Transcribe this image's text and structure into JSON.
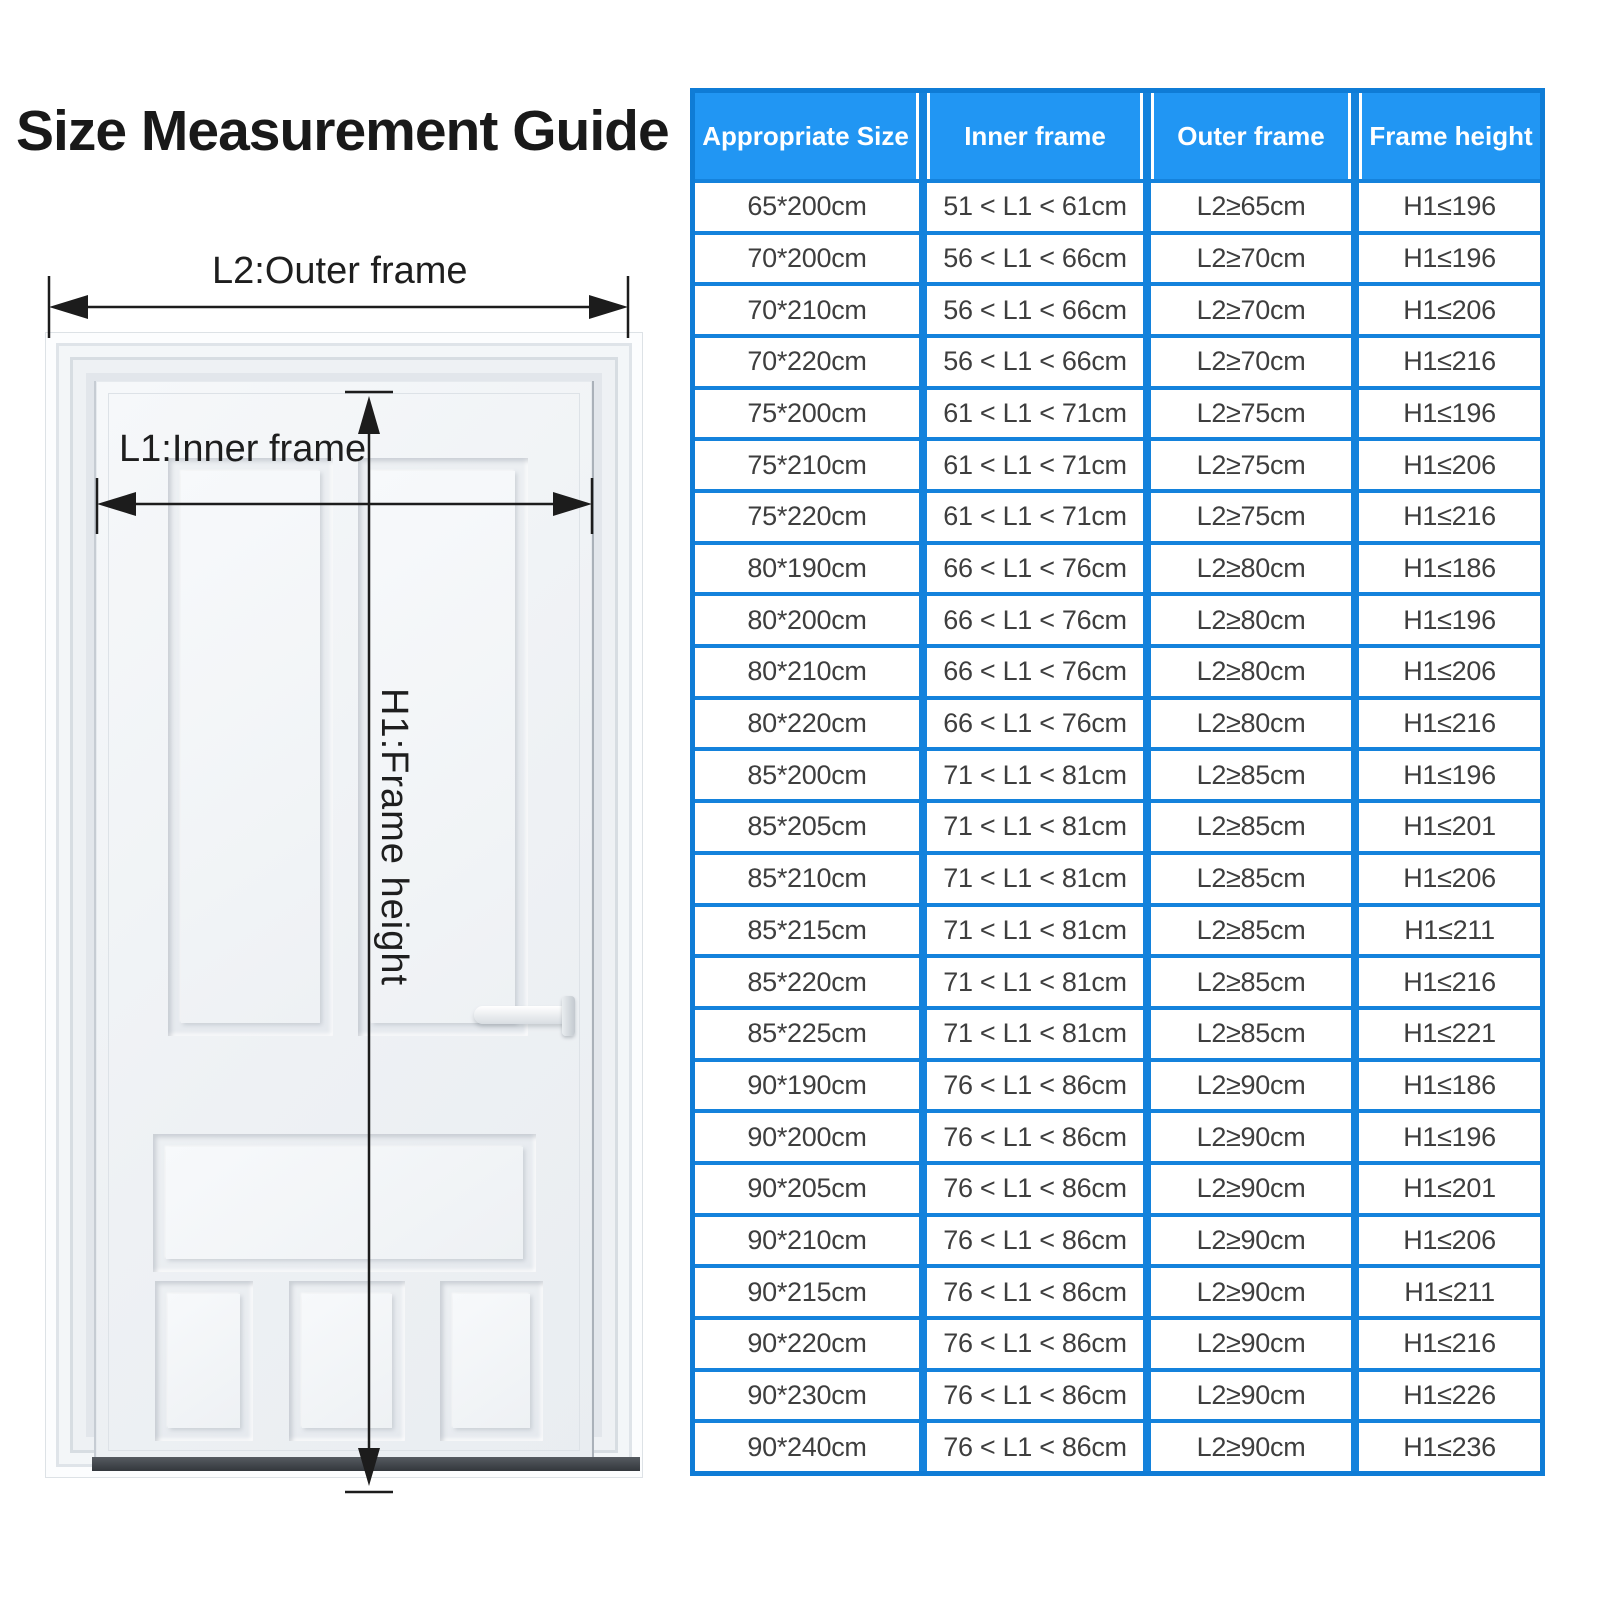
{
  "page": {
    "title": "Size Measurement Guide"
  },
  "diagram": {
    "outer_frame_label": "L2:Outer frame",
    "inner_frame_label": "L1:Inner frame",
    "frame_height_label": "H1:Frame height"
  },
  "table": {
    "headers": [
      "Appropriate Size",
      "Inner frame",
      "Outer frame",
      "Frame height"
    ],
    "rows": [
      [
        "65*200cm",
        "51 < L1 < 61cm",
        "L2≥65cm",
        "H1≤196"
      ],
      [
        "70*200cm",
        "56 < L1 < 66cm",
        "L2≥70cm",
        "H1≤196"
      ],
      [
        "70*210cm",
        "56 < L1 < 66cm",
        "L2≥70cm",
        "H1≤206"
      ],
      [
        "70*220cm",
        "56 < L1 < 66cm",
        "L2≥70cm",
        "H1≤216"
      ],
      [
        "75*200cm",
        "61 < L1 < 71cm",
        "L2≥75cm",
        "H1≤196"
      ],
      [
        "75*210cm",
        "61 < L1 < 71cm",
        "L2≥75cm",
        "H1≤206"
      ],
      [
        "75*220cm",
        "61 < L1 < 71cm",
        "L2≥75cm",
        "H1≤216"
      ],
      [
        "80*190cm",
        "66 < L1 < 76cm",
        "L2≥80cm",
        "H1≤186"
      ],
      [
        "80*200cm",
        "66 < L1 < 76cm",
        "L2≥80cm",
        "H1≤196"
      ],
      [
        "80*210cm",
        "66 < L1 < 76cm",
        "L2≥80cm",
        "H1≤206"
      ],
      [
        "80*220cm",
        "66 < L1 < 76cm",
        "L2≥80cm",
        "H1≤216"
      ],
      [
        "85*200cm",
        "71 < L1 < 81cm",
        "L2≥85cm",
        "H1≤196"
      ],
      [
        "85*205cm",
        "71 < L1 < 81cm",
        "L2≥85cm",
        "H1≤201"
      ],
      [
        "85*210cm",
        "71 < L1 < 81cm",
        "L2≥85cm",
        "H1≤206"
      ],
      [
        "85*215cm",
        "71 < L1 < 81cm",
        "L2≥85cm",
        "H1≤211"
      ],
      [
        "85*220cm",
        "71 < L1 < 81cm",
        "L2≥85cm",
        "H1≤216"
      ],
      [
        "85*225cm",
        "71 < L1 < 81cm",
        "L2≥85cm",
        "H1≤221"
      ],
      [
        "90*190cm",
        "76 < L1 < 86cm",
        "L2≥90cm",
        "H1≤186"
      ],
      [
        "90*200cm",
        "76 < L1 < 86cm",
        "L2≥90cm",
        "H1≤196"
      ],
      [
        "90*205cm",
        "76 < L1 < 86cm",
        "L2≥90cm",
        "H1≤201"
      ],
      [
        "90*210cm",
        "76 < L1 < 86cm",
        "L2≥90cm",
        "H1≤206"
      ],
      [
        "90*215cm",
        "76 < L1 < 86cm",
        "L2≥90cm",
        "H1≤211"
      ],
      [
        "90*220cm",
        "76 < L1 < 86cm",
        "L2≥90cm",
        "H1≤216"
      ],
      [
        "90*230cm",
        "76 < L1 < 86cm",
        "L2≥90cm",
        "H1≤226"
      ],
      [
        "90*240cm",
        "76 < L1 < 86cm",
        "L2≥90cm",
        "H1≤236"
      ]
    ],
    "colors": {
      "header_bg": "#2196F3",
      "grid_line": "#1482DC",
      "outer_border": "#0F7CD6",
      "header_text": "#FFFFFF",
      "body_text": "#3E3E3E"
    }
  }
}
